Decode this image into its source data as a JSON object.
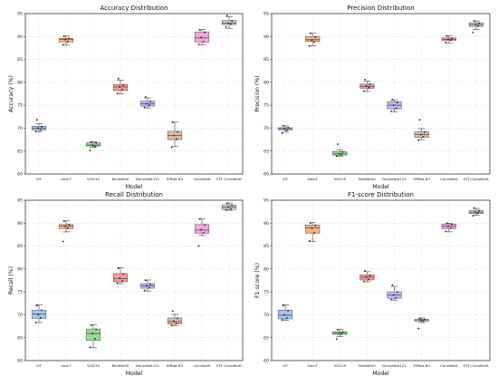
{
  "chart_data": [
    {
      "type": "box",
      "title": "Accuracy Distribution",
      "xlabel": "Model",
      "ylabel": "Accuracy (%)",
      "ylim": [
        60,
        95
      ],
      "yticks": [
        "60",
        "65",
        "70",
        "75",
        "80",
        "85",
        "90",
        "95"
      ],
      "grid": true,
      "categories": [
        "ViT",
        "SwinT",
        "VGG19",
        "ResNet50",
        "DenseNet121",
        "EffNet-B3",
        "ConvNeXt",
        "EFF-ConvNeXt"
      ],
      "colors": [
        "#a9c4eb",
        "#f2b48c",
        "#9ad99a",
        "#f19a9a",
        "#c4b5ee",
        "#d8bba7",
        "#f2a8dc",
        "#c9c9c9"
      ],
      "boxes": [
        {
          "min": 69.2,
          "q1": 69.6,
          "median": 70.0,
          "q3": 70.4,
          "max": 71.0,
          "points": [
            69.3,
            69.6,
            70.0,
            70.3,
            71.8
          ]
        },
        {
          "min": 88.1,
          "q1": 88.8,
          "median": 89.4,
          "q3": 89.6,
          "max": 90.1,
          "points": [
            88.2,
            88.9,
            89.3,
            89.6,
            90.0
          ]
        },
        {
          "min": 65.8,
          "q1": 66.1,
          "median": 66.3,
          "q3": 66.8,
          "max": 67.0,
          "points": [
            65.1,
            66.0,
            66.3,
            66.8,
            67.0
          ]
        },
        {
          "min": 77.5,
          "q1": 78.2,
          "median": 79.0,
          "q3": 79.5,
          "max": 80.5,
          "points": [
            77.6,
            78.4,
            79.0,
            79.4,
            80.8
          ]
        },
        {
          "min": 74.4,
          "q1": 74.8,
          "median": 75.3,
          "q3": 75.9,
          "max": 76.6,
          "points": [
            74.5,
            75.0,
            75.3,
            75.8,
            76.8
          ]
        },
        {
          "min": 66.0,
          "q1": 67.5,
          "median": 68.4,
          "q3": 69.3,
          "max": 71.3,
          "points": [
            65.8,
            67.6,
            68.4,
            69.2,
            71.3
          ]
        },
        {
          "min": 88.2,
          "q1": 88.8,
          "median": 89.7,
          "q3": 91.0,
          "max": 91.5,
          "points": [
            88.3,
            88.9,
            89.8,
            90.9,
            91.4
          ]
        },
        {
          "min": 91.8,
          "q1": 92.6,
          "median": 92.9,
          "q3": 93.5,
          "max": 94.3,
          "points": [
            92.1,
            92.7,
            92.9,
            93.4,
            94.6
          ]
        }
      ]
    },
    {
      "type": "box",
      "title": "Precision Distribution",
      "xlabel": "Model",
      "ylabel": "Precision (%)",
      "ylim": [
        60,
        95
      ],
      "yticks": [
        "60",
        "65",
        "70",
        "75",
        "80",
        "85",
        "90",
        "95"
      ],
      "grid": true,
      "categories": [
        "ViT",
        "SwinT",
        "VGG19",
        "ResNet50",
        "DenseNet121",
        "EffNet-B3",
        "ConvNeXt",
        "EFF-ConvNeXt"
      ],
      "colors": [
        "#a9c4eb",
        "#f2b48c",
        "#9ad99a",
        "#f19a9a",
        "#c4b5ee",
        "#d8bba7",
        "#f2a8dc",
        "#c9c9c9"
      ],
      "boxes": [
        {
          "min": 69.1,
          "q1": 69.6,
          "median": 69.9,
          "q3": 70.1,
          "max": 70.5,
          "points": [
            68.9,
            69.5,
            69.9,
            70.1,
            70.5
          ]
        },
        {
          "min": 88.0,
          "q1": 88.9,
          "median": 89.3,
          "q3": 90.0,
          "max": 90.7,
          "points": [
            87.9,
            88.8,
            89.2,
            89.9,
            90.7
          ]
        },
        {
          "min": 63.8,
          "q1": 64.1,
          "median": 64.4,
          "q3": 64.9,
          "max": 65.3,
          "points": [
            63.9,
            64.2,
            64.4,
            64.8,
            66.5
          ]
        },
        {
          "min": 78.0,
          "q1": 78.7,
          "median": 79.1,
          "q3": 79.6,
          "max": 80.3,
          "points": [
            78.1,
            78.8,
            79.2,
            79.6,
            80.6
          ]
        },
        {
          "min": 73.6,
          "q1": 74.2,
          "median": 75.0,
          "q3": 75.8,
          "max": 76.2,
          "points": [
            73.7,
            74.3,
            75.0,
            75.6,
            76.2
          ]
        },
        {
          "min": 67.5,
          "q1": 68.0,
          "median": 68.6,
          "q3": 69.2,
          "max": 69.9,
          "points": [
            67.3,
            68.1,
            68.6,
            69.1,
            71.8
          ]
        },
        {
          "min": 88.6,
          "q1": 89.1,
          "median": 89.4,
          "q3": 89.7,
          "max": 90.2,
          "points": [
            88.7,
            89.2,
            89.4,
            89.6,
            90.1
          ]
        },
        {
          "min": 91.5,
          "q1": 92.2,
          "median": 92.6,
          "q3": 93.0,
          "max": 93.4,
          "points": [
            90.9,
            92.3,
            92.6,
            92.9,
            93.4
          ]
        }
      ]
    },
    {
      "type": "box",
      "title": "Recall Distribution",
      "xlabel": "Model",
      "ylabel": "Recall (%)",
      "ylim": [
        60,
        95
      ],
      "yticks": [
        "60",
        "65",
        "70",
        "75",
        "80",
        "85",
        "90",
        "95"
      ],
      "grid": true,
      "categories": [
        "ViT",
        "SwinT",
        "VGG19",
        "ResNet50",
        "DenseNet121",
        "EffNet-B3",
        "ConvNeXt",
        "EFF-ConvNeXt"
      ],
      "colors": [
        "#a9c4eb",
        "#f2b48c",
        "#9ad99a",
        "#f19a9a",
        "#c4b5ee",
        "#d8bba7",
        "#f2a8dc",
        "#c9c9c9"
      ],
      "boxes": [
        {
          "min": 68.3,
          "q1": 69.2,
          "median": 70.2,
          "q3": 71.0,
          "max": 72.2,
          "points": [
            68.3,
            69.3,
            70.0,
            71.0,
            72.0
          ]
        },
        {
          "min": 88.1,
          "q1": 88.8,
          "median": 89.4,
          "q3": 89.7,
          "max": 90.5,
          "points": [
            86.0,
            88.9,
            89.3,
            89.7,
            90.4
          ]
        },
        {
          "min": 62.8,
          "q1": 64.4,
          "median": 65.9,
          "q3": 66.9,
          "max": 67.8,
          "points": [
            62.9,
            64.8,
            65.9,
            66.8,
            67.7
          ]
        },
        {
          "min": 76.8,
          "q1": 77.2,
          "median": 77.9,
          "q3": 79.0,
          "max": 80.3,
          "points": [
            76.9,
            77.4,
            78.0,
            78.9,
            80.1
          ]
        },
        {
          "min": 75.2,
          "q1": 75.8,
          "median": 76.3,
          "q3": 76.8,
          "max": 77.6,
          "points": [
            75.3,
            75.9,
            76.3,
            76.7,
            77.5
          ]
        },
        {
          "min": 67.6,
          "q1": 68.0,
          "median": 68.5,
          "q3": 69.3,
          "max": 70.1,
          "points": [
            67.7,
            68.1,
            68.6,
            69.2,
            70.8
          ]
        },
        {
          "min": 87.3,
          "q1": 87.8,
          "median": 88.5,
          "q3": 89.7,
          "max": 91.0,
          "points": [
            85.0,
            87.9,
            88.6,
            89.6,
            90.9
          ]
        },
        {
          "min": 92.8,
          "q1": 93.0,
          "median": 93.5,
          "q3": 94.0,
          "max": 94.4,
          "points": [
            92.9,
            93.1,
            93.5,
            93.9,
            94.3
          ]
        }
      ]
    },
    {
      "type": "box",
      "title": "F1-score Distribution",
      "xlabel": "Model",
      "ylabel": "F1-score (%)",
      "ylim": [
        60,
        95
      ],
      "yticks": [
        "60",
        "65",
        "70",
        "75",
        "80",
        "85",
        "90",
        "95"
      ],
      "grid": true,
      "categories": [
        "ViT",
        "SwinT",
        "VGG19",
        "ResNet50",
        "DenseNet121",
        "EffNet-B3",
        "ConvNeXt",
        "EFF-ConvNeXt"
      ],
      "colors": [
        "#a9c4eb",
        "#f2b48c",
        "#9ad99a",
        "#f19a9a",
        "#c4b5ee",
        "#d8bba7",
        "#f2a8dc",
        "#c9c9c9"
      ],
      "boxes": [
        {
          "min": 68.8,
          "q1": 69.1,
          "median": 69.9,
          "q3": 71.0,
          "max": 72.2,
          "points": [
            68.9,
            69.3,
            70.0,
            70.9,
            72.0
          ]
        },
        {
          "min": 86.0,
          "q1": 87.8,
          "median": 89.0,
          "q3": 89.6,
          "max": 90.1,
          "points": [
            86.1,
            87.9,
            88.9,
            89.5,
            90.0
          ]
        },
        {
          "min": 65.2,
          "q1": 65.7,
          "median": 66.0,
          "q3": 66.3,
          "max": 66.8,
          "points": [
            64.7,
            65.8,
            66.0,
            66.3,
            66.7
          ]
        },
        {
          "min": 77.2,
          "q1": 77.6,
          "median": 78.2,
          "q3": 78.7,
          "max": 79.4,
          "points": [
            77.3,
            77.7,
            78.2,
            78.6,
            79.6
          ]
        },
        {
          "min": 73.2,
          "q1": 73.6,
          "median": 74.3,
          "q3": 75.0,
          "max": 76.2,
          "points": [
            73.3,
            73.7,
            74.3,
            75.0,
            76.5
          ]
        },
        {
          "min": 68.3,
          "q1": 68.6,
          "median": 68.9,
          "q3": 69.0,
          "max": 69.3,
          "points": [
            67.0,
            68.6,
            68.8,
            69.0,
            69.2
          ]
        },
        {
          "min": 88.1,
          "q1": 88.8,
          "median": 89.3,
          "q3": 89.8,
          "max": 90.0,
          "points": [
            88.2,
            88.9,
            89.3,
            89.7,
            90.0
          ]
        },
        {
          "min": 91.7,
          "q1": 92.1,
          "median": 92.4,
          "q3": 92.8,
          "max": 93.2,
          "points": [
            91.6,
            92.2,
            92.4,
            92.7,
            93.3
          ]
        }
      ]
    }
  ]
}
